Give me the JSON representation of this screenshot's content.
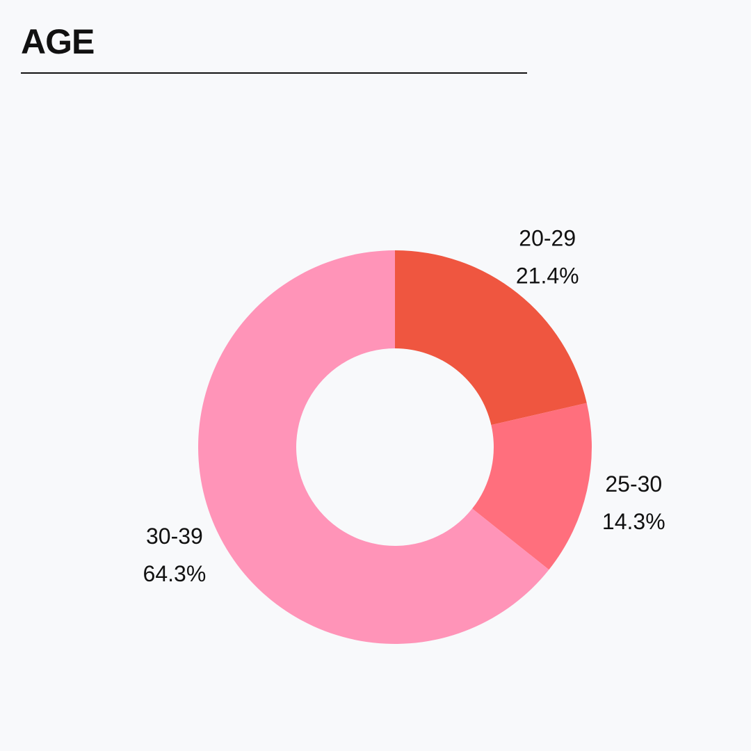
{
  "header": {
    "title": "AGE"
  },
  "chart_data": {
    "type": "pie",
    "variant": "donut",
    "title": "AGE",
    "legend": "none",
    "slices": [
      {
        "label": "20-29",
        "value": 21.4,
        "value_label": "21.4%",
        "color": "#ef5640"
      },
      {
        "label": "25-30",
        "value": 14.3,
        "value_label": "14.3%",
        "color": "#ff6f7d"
      },
      {
        "label": "30-39",
        "value": 64.3,
        "value_label": "64.3%",
        "color": "#ff94b8"
      }
    ]
  }
}
